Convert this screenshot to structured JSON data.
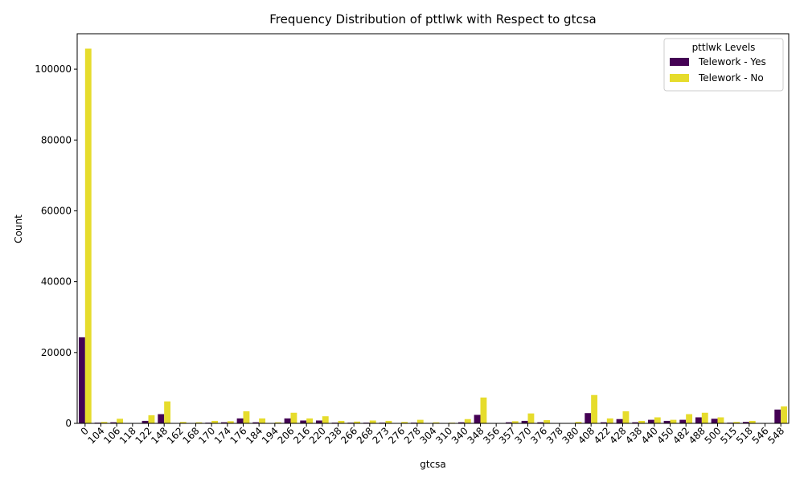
{
  "chart_data": {
    "type": "bar",
    "title": "Frequency Distribution of pttlwk with Respect to gtcsa",
    "xlabel": "gtcsa",
    "ylabel": "Count",
    "ylim": [
      0,
      110000
    ],
    "yticks": [
      0,
      20000,
      40000,
      60000,
      80000,
      100000
    ],
    "legend": {
      "title": "pttlwk Levels",
      "placement": "top-right"
    },
    "categories": [
      "0",
      "104",
      "106",
      "118",
      "122",
      "148",
      "162",
      "168",
      "170",
      "174",
      "176",
      "184",
      "194",
      "206",
      "216",
      "220",
      "238",
      "266",
      "268",
      "273",
      "276",
      "278",
      "304",
      "310",
      "340",
      "348",
      "356",
      "357",
      "370",
      "376",
      "378",
      "380",
      "408",
      "422",
      "428",
      "438",
      "440",
      "450",
      "482",
      "488",
      "500",
      "515",
      "518",
      "546",
      "548"
    ],
    "series": [
      {
        "name": "Telework - Yes",
        "color": "#440154",
        "values": [
          24300,
          200,
          300,
          50,
          700,
          2600,
          100,
          100,
          200,
          300,
          1400,
          300,
          100,
          1400,
          800,
          800,
          200,
          200,
          200,
          200,
          100,
          200,
          100,
          100,
          300,
          2400,
          50,
          300,
          700,
          300,
          50,
          100,
          2900,
          300,
          1200,
          300,
          1000,
          700,
          1000,
          1700,
          1300,
          200,
          400,
          100,
          3900
        ]
      },
      {
        "name": "Telework - No",
        "color": "#e6dc2c",
        "values": [
          105800,
          400,
          1300,
          100,
          2300,
          6200,
          400,
          300,
          700,
          600,
          3400,
          1400,
          300,
          3000,
          1400,
          2000,
          700,
          500,
          800,
          700,
          400,
          1000,
          300,
          200,
          1200,
          7300,
          100,
          600,
          2800,
          900,
          100,
          400,
          8000,
          1400,
          3400,
          700,
          1700,
          1000,
          2600,
          3000,
          1700,
          400,
          700,
          100,
          4800
        ]
      }
    ]
  }
}
